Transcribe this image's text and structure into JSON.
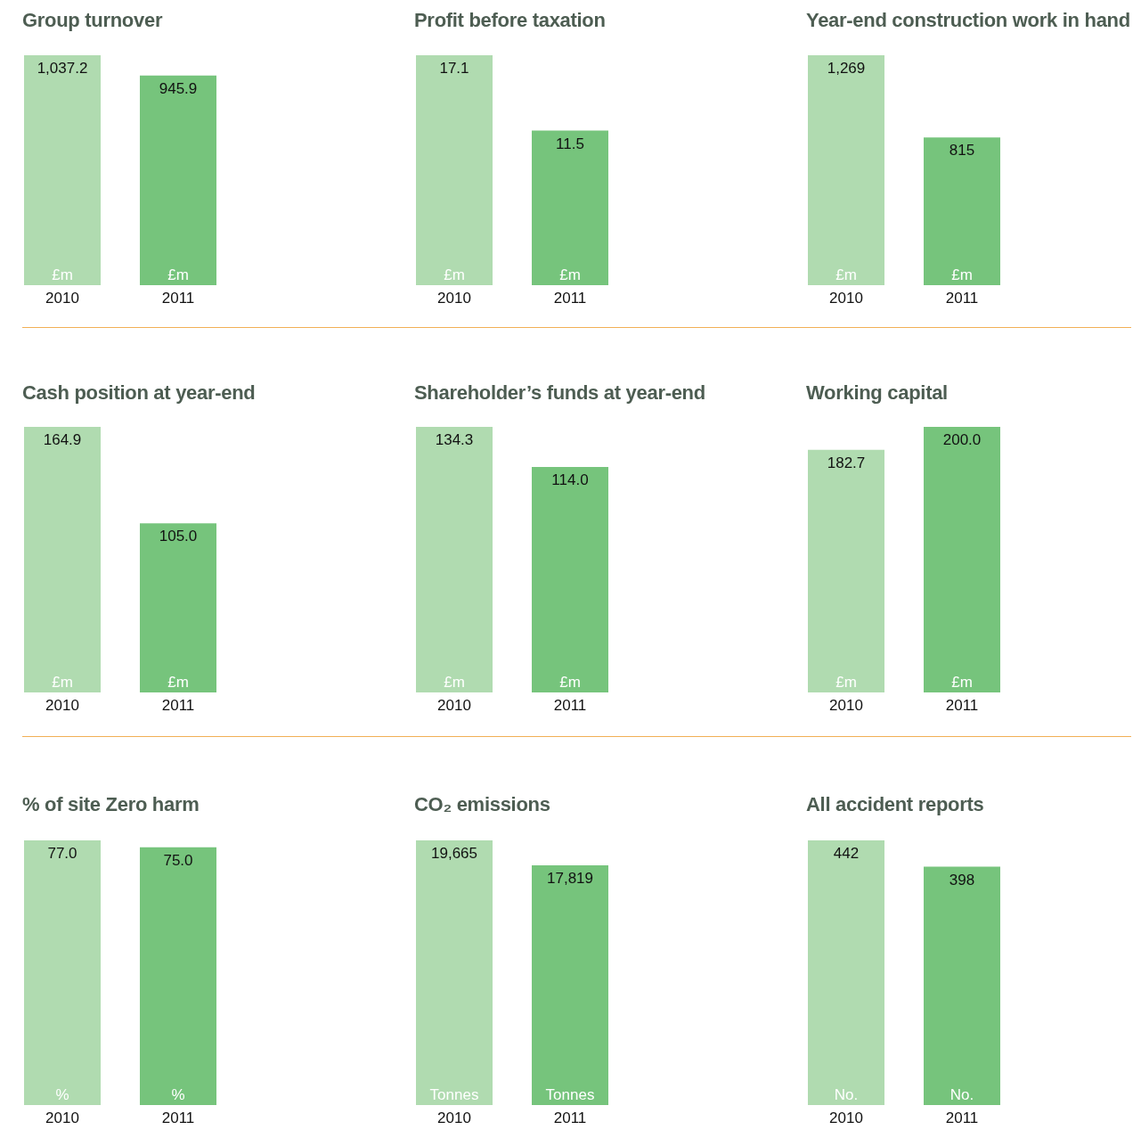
{
  "chart_data": [
    {
      "type": "bar",
      "title": "Group turnover",
      "categories": [
        "2010",
        "2011"
      ],
      "values": [
        1037.2,
        945.9
      ],
      "value_labels": [
        "1,037.2",
        "945.9"
      ],
      "colors": [
        "#b0dbb0",
        "#76c47c"
      ],
      "annotations": [
        "£m",
        "£m"
      ]
    },
    {
      "type": "bar",
      "title": "Profit before taxation",
      "categories": [
        "2010",
        "2011"
      ],
      "values": [
        17.1,
        11.5
      ],
      "value_labels": [
        "17.1",
        "11.5"
      ],
      "colors": [
        "#b0dbb0",
        "#76c47c"
      ],
      "annotations": [
        "£m",
        "£m"
      ]
    },
    {
      "type": "bar",
      "title": "Year-end construction work in hand",
      "categories": [
        "2010",
        "2011"
      ],
      "values": [
        1269,
        815
      ],
      "value_labels": [
        "1,269",
        "815"
      ],
      "colors": [
        "#b0dbb0",
        "#76c47c"
      ],
      "annotations": [
        "£m",
        "£m"
      ]
    },
    {
      "type": "bar",
      "title": "Cash position at year-end",
      "categories": [
        "2010",
        "2011"
      ],
      "values": [
        164.9,
        105.0
      ],
      "value_labels": [
        "164.9",
        "105.0"
      ],
      "colors": [
        "#b0dbb0",
        "#76c47c"
      ],
      "annotations": [
        "£m",
        "£m"
      ]
    },
    {
      "type": "bar",
      "title": "Shareholder’s funds at year-end",
      "categories": [
        "2010",
        "2011"
      ],
      "values": [
        134.3,
        114.0
      ],
      "value_labels": [
        "134.3",
        "114.0"
      ],
      "colors": [
        "#b0dbb0",
        "#76c47c"
      ],
      "annotations": [
        "£m",
        "£m"
      ]
    },
    {
      "type": "bar",
      "title": "Working capital",
      "categories": [
        "2010",
        "2011"
      ],
      "values": [
        182.7,
        200.0
      ],
      "value_labels": [
        "182.7",
        "200.0"
      ],
      "colors": [
        "#b0dbb0",
        "#76c47c"
      ],
      "annotations": [
        "£m",
        "£m"
      ]
    },
    {
      "type": "bar",
      "title": "% of site Zero harm",
      "categories": [
        "2010",
        "2011"
      ],
      "values": [
        77.0,
        75.0
      ],
      "value_labels": [
        "77.0",
        "75.0"
      ],
      "colors": [
        "#b0dbb0",
        "#76c47c"
      ],
      "annotations": [
        "%",
        "%"
      ]
    },
    {
      "type": "bar",
      "title": "CO₂ emissions",
      "categories": [
        "2010",
        "2011"
      ],
      "values": [
        19665,
        17819
      ],
      "value_labels": [
        "19,665",
        "17,819"
      ],
      "colors": [
        "#b0dbb0",
        "#76c47c"
      ],
      "annotations": [
        "Tonnes",
        "Tonnes"
      ]
    },
    {
      "type": "bar",
      "title": "All accident reports",
      "categories": [
        "2010",
        "2011"
      ],
      "values": [
        442,
        398
      ],
      "value_labels": [
        "442",
        "398"
      ],
      "colors": [
        "#b0dbb0",
        "#76c47c"
      ],
      "annotations": [
        "No.",
        "No."
      ]
    }
  ]
}
